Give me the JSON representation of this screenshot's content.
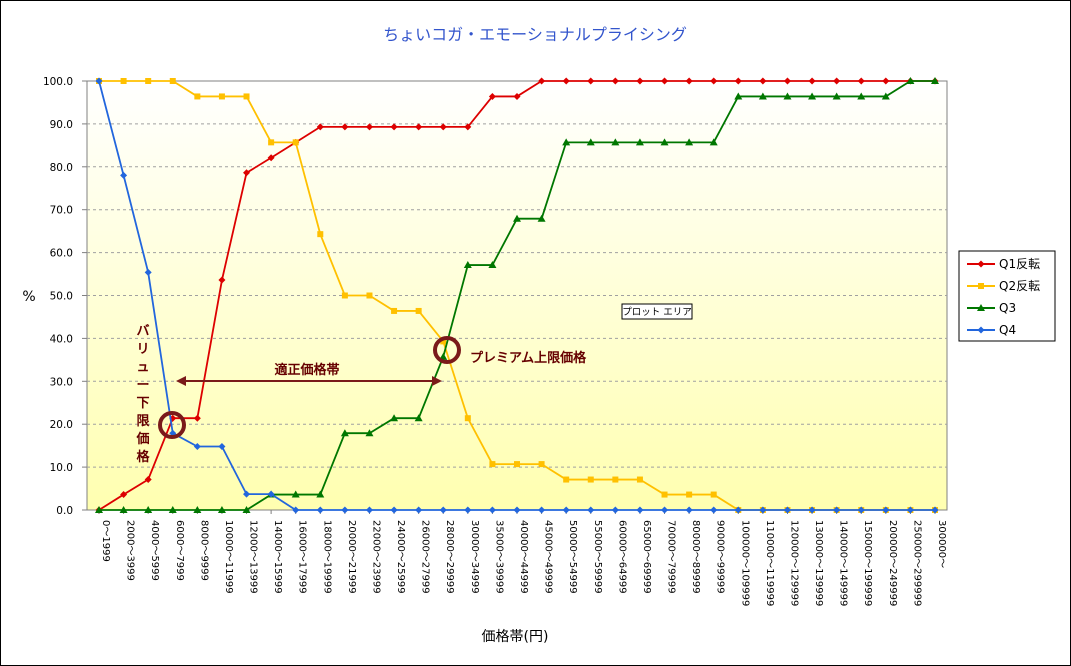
{
  "chart_data": {
    "type": "line",
    "title": "ちょいコガ・エモーショナルプライシング",
    "xlabel": "価格帯(円)",
    "ylabel": "%",
    "ylim": [
      0,
      100
    ],
    "yticks": [
      "0.0",
      "10.0",
      "20.0",
      "30.0",
      "40.0",
      "50.0",
      "60.0",
      "70.0",
      "80.0",
      "90.0",
      "100.0"
    ],
    "grid": true,
    "legend_position": "right",
    "categories": [
      "0～1999",
      "2000～3999",
      "4000～5999",
      "6000～7999",
      "8000～9999",
      "10000～11999",
      "12000～13999",
      "14000～15999",
      "16000～17999",
      "18000～19999",
      "20000～21999",
      "22000～23999",
      "24000～25999",
      "26000～27999",
      "28000～29999",
      "30000～34999",
      "35000～39999",
      "40000～44999",
      "45000～49999",
      "50000～54999",
      "55000～59999",
      "60000～64999",
      "65000～69999",
      "70000～79999",
      "80000～89999",
      "90000～99999",
      "100000～109999",
      "110000～119999",
      "120000～129999",
      "130000～139999",
      "140000～149999",
      "150000～199999",
      "200000～249999",
      "250000～299999",
      "300000～"
    ],
    "series": [
      {
        "name": "Q1反転",
        "color": "#dd0000",
        "marker": "diamond",
        "values": [
          0,
          3.6,
          7.1,
          21.4,
          21.4,
          53.6,
          78.6,
          82.1,
          85.7,
          89.3,
          89.3,
          89.3,
          89.3,
          89.3,
          89.3,
          89.3,
          96.4,
          96.4,
          100,
          100,
          100,
          100,
          100,
          100,
          100,
          100,
          100,
          100,
          100,
          100,
          100,
          100,
          100,
          100,
          100
        ]
      },
      {
        "name": "Q2反転",
        "color": "#ffc000",
        "marker": "square",
        "values": [
          100,
          100,
          100,
          100,
          96.4,
          96.4,
          96.4,
          85.7,
          85.7,
          64.3,
          50,
          50,
          46.4,
          46.4,
          39.3,
          21.4,
          10.7,
          10.7,
          10.7,
          7.1,
          7.1,
          7.1,
          7.1,
          3.6,
          3.6,
          3.6,
          0,
          0,
          0,
          0,
          0,
          0,
          0,
          0,
          0
        ]
      },
      {
        "name": "Q3",
        "color": "#007700",
        "marker": "triangle",
        "values": [
          0,
          0,
          0,
          0,
          0,
          0,
          0,
          3.6,
          3.6,
          3.6,
          17.9,
          17.9,
          21.4,
          21.4,
          35.7,
          57.1,
          57.1,
          67.9,
          67.9,
          85.7,
          85.7,
          85.7,
          85.7,
          85.7,
          85.7,
          85.7,
          96.4,
          96.4,
          96.4,
          96.4,
          96.4,
          96.4,
          96.4,
          100,
          100
        ]
      },
      {
        "name": "Q4",
        "color": "#2266dd",
        "marker": "diamond",
        "values": [
          100,
          78,
          55.4,
          17.9,
          14.8,
          14.8,
          3.7,
          3.7,
          0,
          0,
          0,
          0,
          0,
          0,
          0,
          0,
          0,
          0,
          0,
          0,
          0,
          0,
          0,
          0,
          0,
          0,
          0,
          0,
          0,
          0,
          0,
          0,
          0,
          0,
          0
        ]
      }
    ],
    "annotations": {
      "value_lower_limit": "バリュー下限価格",
      "fair_price_band": "適正価格帯",
      "premium_upper_limit": "プレミアム上限価格",
      "plot_area_tip": "プロット エリア"
    }
  }
}
